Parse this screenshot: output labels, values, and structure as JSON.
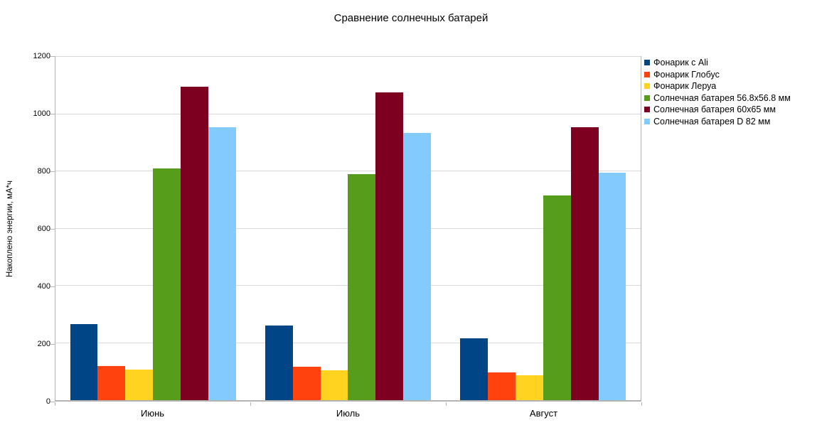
{
  "title": "Сравнение солнечных батарей",
  "chart_data": {
    "type": "bar",
    "title": "Сравнение солнечных батарей",
    "xlabel": "",
    "ylabel": "Накоплено энергии, мА*ч",
    "ylim": [
      0,
      1200
    ],
    "yticks": [
      0,
      200,
      400,
      600,
      800,
      1000,
      1200
    ],
    "grid": true,
    "legend_position": "right",
    "categories": [
      "Июнь",
      "Июль",
      "Август"
    ],
    "series": [
      {
        "name": "Фонарик с Ali",
        "color": "#004586",
        "values": [
          265,
          260,
          215
        ]
      },
      {
        "name": "Фонарик Глобус",
        "color": "#ff420e",
        "values": [
          120,
          116,
          96
        ]
      },
      {
        "name": "Фонарик Леруа",
        "color": "#ffd320",
        "values": [
          106,
          104,
          86
        ]
      },
      {
        "name": "Солнечная батарея 56.8x56.8 мм",
        "color": "#579d1c",
        "values": [
          810,
          790,
          715
        ]
      },
      {
        "name": "Солнечная батарея 60x65 мм",
        "color": "#7e0021",
        "values": [
          1095,
          1075,
          955
        ]
      },
      {
        "name": "Солнечная батарея D 82 мм",
        "color": "#83caff",
        "values": [
          955,
          935,
          795
        ]
      }
    ]
  },
  "colors": {
    "background": "#ffffff",
    "gridline": "#d9d9d9",
    "axis": "#b3b3b3",
    "text": "#000000"
  }
}
